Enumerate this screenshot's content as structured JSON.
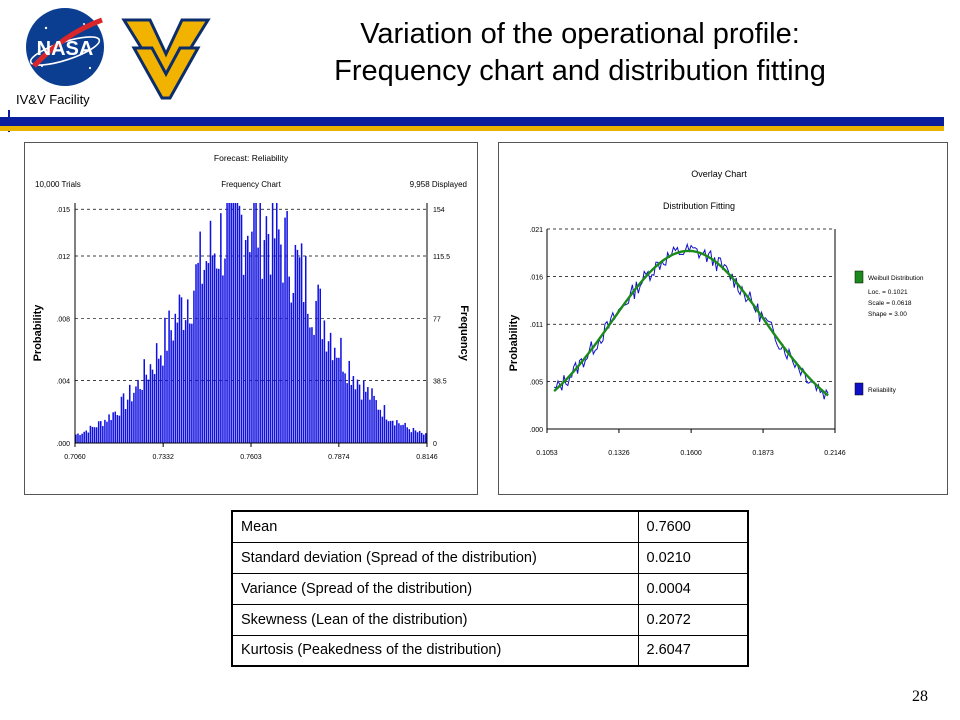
{
  "header": {
    "title_line1": "Variation of the operational profile:",
    "title_line2": "Frequency chart and distribution fitting",
    "facility": "IV&V Facility",
    "nasa_logo_text": "NASA"
  },
  "colors": {
    "band_blue": "#0a1f9c",
    "band_gold": "#e9b400",
    "bars": "#1010e0",
    "fit_curve": "#1a8a1a",
    "data_line": "#1010c8"
  },
  "chart_data": [
    {
      "type": "bar",
      "title": "Forecast: Reliability",
      "subtitle": "Frequency Chart",
      "left_note": "10,000 Trials",
      "right_note": "9,958 Displayed",
      "ylabel": "Probability",
      "ylabel_right": "Frequency",
      "y_ticks": [
        ".000",
        ".004",
        ".008",
        ".012",
        ".015"
      ],
      "y_tick_values": [
        0,
        0.004,
        0.008,
        0.012,
        0.015
      ],
      "y2_ticks": [
        "0",
        "38.5",
        "77",
        "115.5",
        "154"
      ],
      "x_ticks": [
        "0.7060",
        "0.7332",
        "0.7603",
        "0.7874",
        "0.8146"
      ],
      "x_tick_values": [
        0.706,
        0.7332,
        0.7603,
        0.7874,
        0.8146
      ],
      "ylim": [
        0,
        0.0154
      ],
      "xlim": [
        0.706,
        0.8146
      ],
      "grid": "dashed horizontal",
      "distribution": {
        "mean": 0.76,
        "sd": 0.021,
        "peak_probability": 0.0148,
        "bins": 170
      }
    },
    {
      "type": "line",
      "title": "Overlay Chart",
      "subtitle": "Distribution Fitting",
      "ylabel": "Probability",
      "y_ticks": [
        ".000",
        ".005",
        ".011",
        ".016",
        ".021"
      ],
      "y_tick_values": [
        0,
        0.005,
        0.011,
        0.016,
        0.021
      ],
      "x_ticks": [
        "0.1053",
        "0.1326",
        "0.1600",
        "0.1873",
        "0.2146"
      ],
      "x_tick_values": [
        0.1053,
        0.1326,
        0.16,
        0.1873,
        0.2146
      ],
      "xlim": [
        0.1053,
        0.2146
      ],
      "ylim": [
        0,
        0.021
      ],
      "grid": "dashed horizontal",
      "legend_position": "right",
      "series": [
        {
          "name": "Weibull Distribution",
          "color": "#1a8a1a",
          "legend_lines": [
            "Loc. = 0.1021",
            "Scale = 0.0618",
            "Shape = 3.00"
          ],
          "peak": 0.0187,
          "mode": 0.159,
          "spread": 0.029
        },
        {
          "name": "Reliability",
          "color": "#1010c8",
          "noise": 0.0009
        }
      ]
    }
  ],
  "stats_table": {
    "rows": [
      {
        "label": "Mean",
        "value": "0.7600"
      },
      {
        "label": "Standard deviation (Spread of the distribution)",
        "value": "0.0210"
      },
      {
        "label": "Variance (Spread of the distribution)",
        "value": "0.0004"
      },
      {
        "label": "Skewness (Lean of the distribution)",
        "value": "0.2072"
      },
      {
        "label": "Kurtosis (Peakedness of the distribution)",
        "value": "2.6047"
      }
    ]
  },
  "page_number": "28"
}
